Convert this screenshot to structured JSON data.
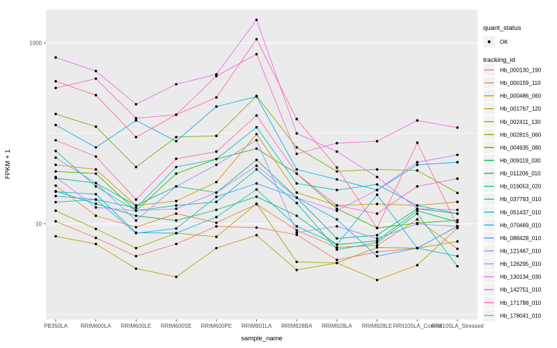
{
  "figure": {
    "background": "#FFFFFF",
    "panel_background": "#EBEBEB",
    "gridline_color": "#FFFFFF",
    "tick_color": "#333333",
    "tick_text_color": "#4D4D4D",
    "text_color": "#000000",
    "point_color": "#000000",
    "legend_key_fill": "#F2F2F2"
  },
  "chart_data": {
    "type": "line",
    "title": "",
    "xlabel": "sample_name",
    "ylabel": "FPKM + 1",
    "y_scale": "log10",
    "y_axis_ticks": [
      10,
      1000
    ],
    "y_minor_gridlines": [
      1,
      100
    ],
    "ylim": [
      0.9,
      2300
    ],
    "grid": true,
    "legend_position": "right",
    "categories": [
      "PB350LA",
      "RRIM600LA",
      "RRIM600LE",
      "RRIM600SE",
      "RRIM600PE",
      "RRIM901LA",
      "RRIM928BA",
      "RRIM928LA",
      "RRIM928LE",
      "RRII105LA_Control",
      "RRII105LA_Stressed"
    ],
    "series": [
      {
        "name": "Hb_000130_190",
        "color": "#F8766D",
        "values": [
          10.7,
          7.0,
          4.4,
          6.0,
          9.4,
          9.1,
          7.6,
          4.0,
          4.9,
          5.4,
          9.4
        ]
      },
      {
        "name": "Hb_000159_110",
        "color": "#EA8331",
        "values": [
          26.5,
          12.3,
          9.2,
          13,
          10.3,
          16.5,
          8.5,
          5.5,
          5.8,
          11.2,
          5.3
        ]
      },
      {
        "name": "Hb_000486_060",
        "color": "#D89000",
        "values": [
          45,
          40,
          16,
          17.9,
          29,
          98,
          22.2,
          16,
          16.6,
          16,
          17.5
        ]
      },
      {
        "name": "Hb_001767_120",
        "color": "#C09B00",
        "values": [
          7.3,
          6.0,
          3.2,
          2.6,
          5.4,
          7.5,
          3.1,
          3.7,
          2.4,
          3.5,
          9.0
        ]
      },
      {
        "name": "Hb_002411_130",
        "color": "#A3A500",
        "values": [
          14,
          8.8,
          5.4,
          7.9,
          7.2,
          16.7,
          3.8,
          3.7,
          5.5,
          5.4,
          6.4
        ]
      },
      {
        "name": "Hb_002815_060",
        "color": "#7CAE00",
        "values": [
          164,
          119,
          42.5,
          91,
          94,
          260,
          70,
          38,
          40,
          39,
          22
        ]
      },
      {
        "name": "Hb_004935_080",
        "color": "#39B600",
        "values": [
          38,
          36,
          14,
          36,
          52,
          68,
          36,
          14.7,
          9.0,
          10.2,
          11
        ]
      },
      {
        "name": "Hb_009119_030",
        "color": "#00BB4E",
        "values": [
          23,
          16.7,
          12.3,
          10.9,
          14.3,
          20,
          12.3,
          5.9,
          6.5,
          14,
          10.5
        ]
      },
      {
        "name": "Hb_011206_010",
        "color": "#00BF7D",
        "values": [
          32,
          28.3,
          16,
          26,
          22.2,
          51,
          19.5,
          6.9,
          7.5,
          14.7,
          13
        ]
      },
      {
        "name": "Hb_019053_020",
        "color": "#00C1A3",
        "values": [
          64,
          26,
          14,
          16,
          17.5,
          40,
          17,
          5.2,
          6.2,
          13,
          3.4
        ]
      },
      {
        "name": "Hb_037793_010",
        "color": "#00BFC4",
        "values": [
          17.4,
          18.6,
          15,
          42.5,
          52,
          117,
          28,
          23.7,
          27.3,
          16,
          13
        ]
      },
      {
        "name": "Hb_051437_010",
        "color": "#00BADE",
        "values": [
          22.7,
          21.3,
          8,
          7.9,
          11.9,
          24,
          9.4,
          5.9,
          21,
          5.4,
          4.4
        ]
      },
      {
        "name": "Hb_070469_010",
        "color": "#00B0F6",
        "values": [
          124,
          70,
          139,
          82,
          198,
          255,
          40,
          31,
          23.7,
          45,
          48
        ]
      },
      {
        "name": "Hb_088428_010",
        "color": "#35A2FF",
        "values": [
          20.3,
          18.6,
          7.9,
          8.9,
          19.9,
          28,
          19.5,
          11.2,
          4.4,
          5.4,
          9.4
        ]
      },
      {
        "name": "Hb_121467_010",
        "color": "#9590FF",
        "values": [
          54,
          28.3,
          10.9,
          26,
          45,
          84,
          8.0,
          9.4,
          6.9,
          10,
          9.4
        ]
      },
      {
        "name": "Hb_126295_010",
        "color": "#C77CFF",
        "values": [
          33,
          15.2,
          14,
          14.7,
          22.2,
          44,
          19.5,
          14,
          23.7,
          48,
          58
        ]
      },
      {
        "name": "Hb_130134_030",
        "color": "#E76BF3",
        "values": [
          690,
          490,
          210,
          350,
          450,
          1800,
          100,
          63,
          33,
          14.7,
          14.3
        ]
      },
      {
        "name": "Hb_142751_010",
        "color": "#FA62DB",
        "values": [
          318,
          403,
          147,
          161,
          430,
          750,
          59.5,
          78,
          82,
          139,
          116
        ]
      },
      {
        "name": "Hb_171788_010",
        "color": "#FF62BC",
        "values": [
          84,
          55.5,
          18.6,
          52.5,
          63,
          158,
          36,
          16,
          13,
          26,
          31.6
        ]
      },
      {
        "name": "Hb_178041_010",
        "color": "#FF6A98",
        "values": [
          377,
          265,
          91,
          161,
          250,
          1100,
          144,
          42,
          9.0,
          79,
          9.4
        ]
      }
    ],
    "legend": {
      "quant_status_title": "quant_status",
      "quant_status_items": [
        {
          "label": "OK",
          "symbol": "point"
        }
      ],
      "tracking_id_title": "tracking_id"
    }
  }
}
